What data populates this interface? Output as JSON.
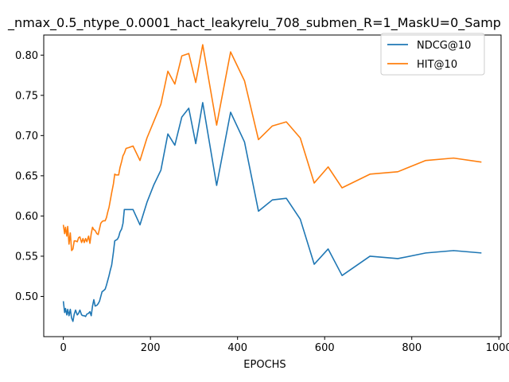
{
  "chart_data": {
    "type": "line",
    "title": "_nmax_0.5_ntype_0.0001_hact_leakyrelu_708_submen_R=1_MaskU=0_Samp",
    "xlabel": "EPOCHS",
    "ylabel": "",
    "xlim": [
      -45,
      1005
    ],
    "ylim": [
      0.45,
      0.825
    ],
    "xticks": [
      0,
      200,
      400,
      600,
      800,
      1000
    ],
    "yticks": [
      0.5,
      0.55,
      0.6,
      0.65,
      0.7,
      0.75,
      0.8
    ],
    "xtick_labels": [
      "0",
      "200",
      "400",
      "600",
      "800",
      "1000"
    ],
    "ytick_labels": [
      "0.50",
      "0.55",
      "0.60",
      "0.65",
      "0.70",
      "0.75",
      "0.80"
    ],
    "grid": false,
    "legend_position": "top-right",
    "series": [
      {
        "name": "NDCG@10",
        "color": "#1f77b4",
        "x": [
          0,
          3,
          5,
          8,
          10,
          13,
          16,
          19,
          22,
          25,
          28,
          32,
          35,
          38,
          42,
          45,
          48,
          51,
          54,
          58,
          61,
          64,
          67,
          70,
          73,
          77,
          80,
          83,
          86,
          89,
          92,
          96,
          99,
          102,
          105,
          108,
          111,
          115,
          118,
          121,
          124,
          127,
          130,
          134,
          137,
          140,
          144,
          150,
          160,
          176,
          192,
          208,
          224,
          240,
          256,
          272,
          288,
          304,
          320,
          352,
          384,
          416,
          448,
          480,
          512,
          544,
          576,
          608,
          640,
          704,
          768,
          832,
          896,
          960
        ],
        "y": [
          0.494,
          0.48,
          0.485,
          0.477,
          0.484,
          0.476,
          0.484,
          0.473,
          0.469,
          0.478,
          0.483,
          0.477,
          0.479,
          0.483,
          0.477,
          0.476,
          0.476,
          0.475,
          0.478,
          0.479,
          0.481,
          0.476,
          0.488,
          0.496,
          0.488,
          0.489,
          0.491,
          0.494,
          0.5,
          0.506,
          0.507,
          0.509,
          0.514,
          0.52,
          0.526,
          0.533,
          0.539,
          0.555,
          0.569,
          0.57,
          0.571,
          0.574,
          0.58,
          0.584,
          0.591,
          0.608,
          0.608,
          0.608,
          0.608,
          0.589,
          0.617,
          0.639,
          0.657,
          0.702,
          0.688,
          0.723,
          0.734,
          0.69,
          0.741,
          0.638,
          0.729,
          0.692,
          0.606,
          0.62,
          0.622,
          0.596,
          0.54,
          0.559,
          0.526,
          0.55,
          0.547,
          0.554,
          0.557,
          0.554
        ]
      },
      {
        "name": "HIT@10",
        "color": "#ff7f0e",
        "x": [
          0,
          3,
          5,
          8,
          10,
          13,
          16,
          19,
          22,
          25,
          28,
          32,
          35,
          38,
          42,
          45,
          48,
          51,
          54,
          58,
          61,
          64,
          67,
          70,
          73,
          77,
          80,
          83,
          86,
          89,
          92,
          96,
          99,
          102,
          105,
          108,
          111,
          115,
          118,
          121,
          124,
          127,
          130,
          134,
          137,
          140,
          144,
          150,
          160,
          176,
          192,
          208,
          224,
          240,
          256,
          272,
          288,
          304,
          320,
          352,
          384,
          416,
          448,
          480,
          512,
          544,
          576,
          608,
          640,
          704,
          768,
          832,
          896,
          960
        ],
        "y": [
          0.589,
          0.578,
          0.586,
          0.575,
          0.587,
          0.565,
          0.579,
          0.557,
          0.559,
          0.569,
          0.569,
          0.568,
          0.573,
          0.574,
          0.567,
          0.572,
          0.567,
          0.572,
          0.568,
          0.575,
          0.566,
          0.578,
          0.586,
          0.583,
          0.582,
          0.578,
          0.577,
          0.584,
          0.591,
          0.593,
          0.594,
          0.594,
          0.598,
          0.605,
          0.611,
          0.62,
          0.629,
          0.64,
          0.652,
          0.651,
          0.651,
          0.651,
          0.66,
          0.668,
          0.675,
          0.678,
          0.684,
          0.685,
          0.687,
          0.669,
          0.697,
          0.718,
          0.739,
          0.78,
          0.764,
          0.799,
          0.802,
          0.766,
          0.813,
          0.713,
          0.804,
          0.768,
          0.695,
          0.712,
          0.717,
          0.697,
          0.641,
          0.661,
          0.635,
          0.652,
          0.655,
          0.669,
          0.672,
          0.667
        ]
      }
    ]
  }
}
